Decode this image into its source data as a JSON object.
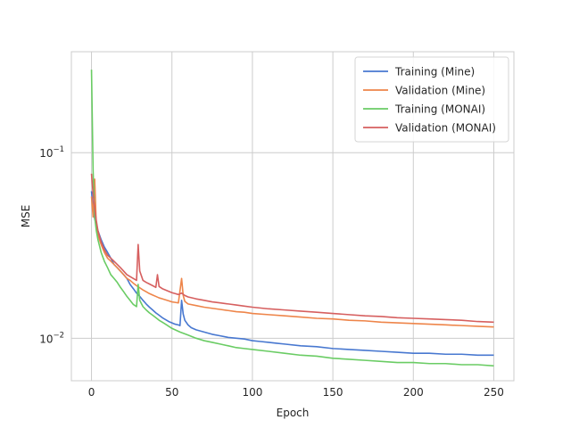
{
  "chart_data": {
    "type": "line",
    "xlabel": "Epoch",
    "ylabel": "MSE",
    "xlim": [
      -12.5,
      262.5
    ],
    "ylim": [
      0.0059,
      0.35
    ],
    "yscale": "log",
    "grid": true,
    "legend_position": "top-right",
    "x_ticks": [
      0,
      50,
      100,
      150,
      200,
      250
    ],
    "x_tick_labels": [
      "0",
      "50",
      "100",
      "150",
      "200",
      "250"
    ],
    "y_ticks": [
      0.01,
      0.1
    ],
    "y_tick_labels": [
      {
        "base": "10",
        "exp": "−2"
      },
      {
        "base": "10",
        "exp": "−1"
      }
    ],
    "series": [
      {
        "name": "Training (Mine)",
        "color": "#4878d0",
        "points": [
          [
            0,
            0.062
          ],
          [
            1,
            0.05
          ],
          [
            2,
            0.044
          ],
          [
            4,
            0.038
          ],
          [
            6,
            0.034
          ],
          [
            8,
            0.031
          ],
          [
            10,
            0.029
          ],
          [
            12,
            0.027
          ],
          [
            14,
            0.025
          ],
          [
            16,
            0.024
          ],
          [
            18,
            0.023
          ],
          [
            20,
            0.022
          ],
          [
            22,
            0.021
          ],
          [
            24,
            0.0195
          ],
          [
            26,
            0.0185
          ],
          [
            28,
            0.0175
          ],
          [
            30,
            0.0168
          ],
          [
            32,
            0.016
          ],
          [
            34,
            0.0153
          ],
          [
            36,
            0.0147
          ],
          [
            38,
            0.0142
          ],
          [
            40,
            0.0137
          ],
          [
            42,
            0.0133
          ],
          [
            44,
            0.0129
          ],
          [
            46,
            0.0126
          ],
          [
            48,
            0.0123
          ],
          [
            50,
            0.0121
          ],
          [
            52,
            0.0119
          ],
          [
            54,
            0.0118
          ],
          [
            55,
            0.0117
          ],
          [
            56,
            0.016
          ],
          [
            57,
            0.0135
          ],
          [
            58,
            0.0125
          ],
          [
            60,
            0.0118
          ],
          [
            62,
            0.0114
          ],
          [
            65,
            0.0111
          ],
          [
            70,
            0.0108
          ],
          [
            75,
            0.0105
          ],
          [
            80,
            0.0103
          ],
          [
            85,
            0.0101
          ],
          [
            90,
            0.01
          ],
          [
            95,
            0.0099
          ],
          [
            100,
            0.0097
          ],
          [
            105,
            0.0096
          ],
          [
            110,
            0.0095
          ],
          [
            115,
            0.0094
          ],
          [
            120,
            0.0093
          ],
          [
            130,
            0.0091
          ],
          [
            140,
            0.009
          ],
          [
            150,
            0.0088
          ],
          [
            160,
            0.0087
          ],
          [
            170,
            0.0086
          ],
          [
            180,
            0.0085
          ],
          [
            190,
            0.0084
          ],
          [
            200,
            0.0083
          ],
          [
            210,
            0.0083
          ],
          [
            220,
            0.0082
          ],
          [
            230,
            0.0082
          ],
          [
            240,
            0.0081
          ],
          [
            250,
            0.0081
          ]
        ]
      },
      {
        "name": "Validation (Mine)",
        "color": "#ee854a",
        "points": [
          [
            0,
            0.058
          ],
          [
            1,
            0.045
          ],
          [
            2,
            0.072
          ],
          [
            3,
            0.04
          ],
          [
            4,
            0.036
          ],
          [
            6,
            0.032
          ],
          [
            8,
            0.029
          ],
          [
            10,
            0.027
          ],
          [
            12,
            0.026
          ],
          [
            14,
            0.025
          ],
          [
            16,
            0.024
          ],
          [
            18,
            0.023
          ],
          [
            20,
            0.022
          ],
          [
            22,
            0.021
          ],
          [
            24,
            0.0205
          ],
          [
            26,
            0.0198
          ],
          [
            28,
            0.0192
          ],
          [
            30,
            0.0187
          ],
          [
            32,
            0.0182
          ],
          [
            34,
            0.0178
          ],
          [
            36,
            0.0174
          ],
          [
            38,
            0.0171
          ],
          [
            40,
            0.0168
          ],
          [
            42,
            0.0165
          ],
          [
            44,
            0.0163
          ],
          [
            46,
            0.0161
          ],
          [
            48,
            0.0159
          ],
          [
            50,
            0.0157
          ],
          [
            52,
            0.0156
          ],
          [
            54,
            0.0155
          ],
          [
            56,
            0.021
          ],
          [
            57,
            0.017
          ],
          [
            58,
            0.0158
          ],
          [
            60,
            0.0153
          ],
          [
            65,
            0.015
          ],
          [
            70,
            0.0147
          ],
          [
            75,
            0.0145
          ],
          [
            80,
            0.0143
          ],
          [
            85,
            0.0141
          ],
          [
            90,
            0.0139
          ],
          [
            95,
            0.0138
          ],
          [
            100,
            0.0136
          ],
          [
            110,
            0.0134
          ],
          [
            120,
            0.0132
          ],
          [
            130,
            0.013
          ],
          [
            140,
            0.0128
          ],
          [
            150,
            0.0127
          ],
          [
            160,
            0.0125
          ],
          [
            170,
            0.0124
          ],
          [
            180,
            0.0122
          ],
          [
            190,
            0.0121
          ],
          [
            200,
            0.012
          ],
          [
            210,
            0.0119
          ],
          [
            220,
            0.0118
          ],
          [
            230,
            0.0117
          ],
          [
            240,
            0.0116
          ],
          [
            250,
            0.0115
          ]
        ]
      },
      {
        "name": "Training (MONAI)",
        "color": "#6acc64",
        "points": [
          [
            0,
            0.28
          ],
          [
            1,
            0.08
          ],
          [
            2,
            0.045
          ],
          [
            3,
            0.038
          ],
          [
            4,
            0.034
          ],
          [
            6,
            0.029
          ],
          [
            8,
            0.026
          ],
          [
            10,
            0.024
          ],
          [
            12,
            0.022
          ],
          [
            14,
            0.021
          ],
          [
            16,
            0.02
          ],
          [
            18,
            0.0188
          ],
          [
            20,
            0.0178
          ],
          [
            22,
            0.0168
          ],
          [
            24,
            0.016
          ],
          [
            26,
            0.0152
          ],
          [
            28,
            0.0148
          ],
          [
            29,
            0.0195
          ],
          [
            30,
            0.016
          ],
          [
            32,
            0.0148
          ],
          [
            34,
            0.0142
          ],
          [
            36,
            0.0137
          ],
          [
            38,
            0.0133
          ],
          [
            40,
            0.0129
          ],
          [
            42,
            0.0125
          ],
          [
            44,
            0.0122
          ],
          [
            46,
            0.0119
          ],
          [
            48,
            0.0116
          ],
          [
            50,
            0.0113
          ],
          [
            55,
            0.0108
          ],
          [
            60,
            0.0104
          ],
          [
            65,
            0.01
          ],
          [
            70,
            0.0097
          ],
          [
            75,
            0.0095
          ],
          [
            80,
            0.0093
          ],
          [
            85,
            0.0091
          ],
          [
            90,
            0.0089
          ],
          [
            95,
            0.0088
          ],
          [
            100,
            0.0087
          ],
          [
            110,
            0.0085
          ],
          [
            120,
            0.0083
          ],
          [
            130,
            0.0081
          ],
          [
            140,
            0.008
          ],
          [
            150,
            0.0078
          ],
          [
            160,
            0.0077
          ],
          [
            170,
            0.0076
          ],
          [
            180,
            0.0075
          ],
          [
            190,
            0.0074
          ],
          [
            200,
            0.0074
          ],
          [
            210,
            0.0073
          ],
          [
            220,
            0.0073
          ],
          [
            230,
            0.0072
          ],
          [
            240,
            0.0072
          ],
          [
            250,
            0.0071
          ]
        ]
      },
      {
        "name": "Validation (MONAI)",
        "color": "#d65f5f",
        "points": [
          [
            0,
            0.077
          ],
          [
            1,
            0.06
          ],
          [
            2,
            0.05
          ],
          [
            3,
            0.043
          ],
          [
            4,
            0.038
          ],
          [
            6,
            0.033
          ],
          [
            8,
            0.03
          ],
          [
            10,
            0.028
          ],
          [
            12,
            0.027
          ],
          [
            14,
            0.026
          ],
          [
            16,
            0.025
          ],
          [
            18,
            0.024
          ],
          [
            20,
            0.023
          ],
          [
            22,
            0.022
          ],
          [
            24,
            0.0215
          ],
          [
            26,
            0.021
          ],
          [
            28,
            0.0205
          ],
          [
            29,
            0.032
          ],
          [
            30,
            0.023
          ],
          [
            32,
            0.0205
          ],
          [
            34,
            0.02
          ],
          [
            36,
            0.0196
          ],
          [
            38,
            0.0192
          ],
          [
            40,
            0.0188
          ],
          [
            41,
            0.022
          ],
          [
            42,
            0.019
          ],
          [
            44,
            0.0185
          ],
          [
            46,
            0.0182
          ],
          [
            48,
            0.0179
          ],
          [
            50,
            0.0176
          ],
          [
            52,
            0.0174
          ],
          [
            54,
            0.0172
          ],
          [
            56,
            0.0175
          ],
          [
            58,
            0.017
          ],
          [
            60,
            0.0167
          ],
          [
            65,
            0.0163
          ],
          [
            70,
            0.016
          ],
          [
            75,
            0.0157
          ],
          [
            80,
            0.0155
          ],
          [
            85,
            0.0153
          ],
          [
            90,
            0.0151
          ],
          [
            95,
            0.0149
          ],
          [
            100,
            0.0147
          ],
          [
            110,
            0.0144
          ],
          [
            120,
            0.0142
          ],
          [
            130,
            0.014
          ],
          [
            140,
            0.0138
          ],
          [
            150,
            0.0136
          ],
          [
            160,
            0.0134
          ],
          [
            170,
            0.0132
          ],
          [
            180,
            0.0131
          ],
          [
            190,
            0.0129
          ],
          [
            200,
            0.0128
          ],
          [
            210,
            0.0127
          ],
          [
            220,
            0.0126
          ],
          [
            230,
            0.0125
          ],
          [
            240,
            0.0123
          ],
          [
            250,
            0.0122
          ]
        ]
      }
    ]
  }
}
